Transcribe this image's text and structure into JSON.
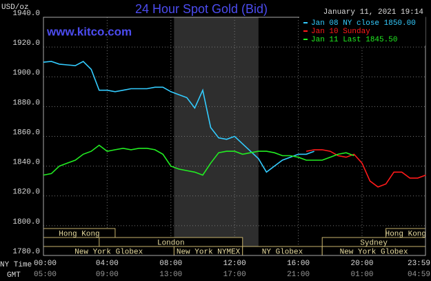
{
  "chart_data": {
    "type": "line",
    "title": "24 Hour Spot Gold (Bid)",
    "y_label": "USD/oz",
    "timestamp": "January 11, 2021 19:14",
    "watermark": "www.kitco.com",
    "x_label": "NY Time",
    "x2_label": "GMT",
    "x": [
      0,
      0.5,
      1,
      1.5,
      2,
      2.5,
      3,
      3.5,
      4,
      4.5,
      5,
      5.5,
      6,
      6.5,
      7,
      7.5,
      8,
      8.5,
      9,
      9.5,
      10,
      10.5,
      11,
      11.5,
      12,
      12.5,
      13,
      13.5,
      14,
      14.5,
      15,
      15.5,
      16,
      16.5,
      17,
      17.5,
      18,
      18.5,
      19,
      19.5,
      20,
      20.5,
      21,
      21.5,
      22,
      22.5,
      23,
      23.5,
      24
    ],
    "series": [
      {
        "name": "Jan 08 NY close 1850.00",
        "color": "#33ccff",
        "values": [
          1909.8,
          1910.3,
          1908.5,
          1908,
          1907.5,
          1910.3,
          1905,
          1891,
          1891,
          1890,
          1891,
          1892,
          1892,
          1892,
          1893,
          1893,
          1890,
          1888,
          1886,
          1879,
          1891,
          1866,
          1859,
          1858,
          1860,
          1855,
          1850,
          1845,
          1836,
          1840,
          1844,
          1846,
          1848,
          1848,
          1850,
          null,
          null,
          null,
          null,
          null,
          null,
          null,
          null,
          null,
          null,
          null,
          null,
          null,
          null
        ]
      },
      {
        "name": "Jan 10 Sunday",
        "color": "#ff1a1a",
        "values": [
          null,
          null,
          null,
          null,
          null,
          null,
          null,
          null,
          null,
          null,
          null,
          null,
          null,
          null,
          null,
          null,
          null,
          null,
          null,
          null,
          null,
          null,
          null,
          null,
          null,
          null,
          null,
          null,
          null,
          null,
          null,
          null,
          null,
          1850,
          1851,
          1851,
          1850,
          1847,
          1846,
          1848,
          1842,
          1830,
          1826,
          1828,
          1836,
          1836,
          1832,
          1832,
          1834
        ]
      },
      {
        "name": "Jan 11 Last 1845.50",
        "color": "#22ee22",
        "values": [
          1834,
          1835,
          1840,
          1842,
          1844,
          1848,
          1850,
          1854,
          1850,
          1851,
          1852,
          1851,
          1852,
          1852,
          1851,
          1848,
          1840,
          1838,
          1837,
          1836,
          1834,
          1842,
          1849,
          1850,
          1850,
          1848,
          1849,
          1850,
          1850,
          1849,
          1847,
          1847,
          1846,
          1844,
          1844,
          1844,
          1846,
          1848,
          1849,
          1847,
          null,
          null,
          null,
          null,
          null,
          null,
          null,
          null,
          null
        ]
      }
    ],
    "xlim": [
      0,
      23.9833
    ],
    "xticks": [
      {
        "value": 0,
        "label": "00:00"
      },
      {
        "value": 4,
        "label": "04:00"
      },
      {
        "value": 8,
        "label": "08:00"
      },
      {
        "value": 12,
        "label": "12:00"
      },
      {
        "value": 16,
        "label": "16:00"
      },
      {
        "value": 20,
        "label": "20:00"
      },
      {
        "value": 23.9833,
        "label": "23:59"
      }
    ],
    "x2ticks": [
      {
        "value": 0,
        "label": "05:00"
      },
      {
        "value": 4,
        "label": "09:00"
      },
      {
        "value": 8,
        "label": "13:00"
      },
      {
        "value": 12,
        "label": "17:00"
      },
      {
        "value": 16,
        "label": "21:00"
      },
      {
        "value": 20,
        "label": "01:00"
      },
      {
        "value": 23.9833,
        "label": "04:59"
      }
    ],
    "ylim": [
      1780,
      1940
    ],
    "yticks": [
      {
        "value": 1780,
        "label": "1780.0"
      },
      {
        "value": 1800,
        "label": "1800.0"
      },
      {
        "value": 1820,
        "label": "1820.0"
      },
      {
        "value": 1840,
        "label": "1840.0"
      },
      {
        "value": 1860,
        "label": "1860.0"
      },
      {
        "value": 1880,
        "label": "1880.0"
      },
      {
        "value": 1900,
        "label": "1900.0"
      },
      {
        "value": 1920,
        "label": "1920.0"
      },
      {
        "value": 1940,
        "label": "1940.0"
      }
    ],
    "grid": true,
    "shade": [
      8.2,
      13.5
    ],
    "sessions": [
      {
        "label": "Hong Kong",
        "row": 0,
        "start": 0,
        "end": 4.5
      },
      {
        "label": "Hong Kong",
        "row": 0,
        "start": 21.5,
        "end": 23.9833
      },
      {
        "label": "London",
        "row": 1,
        "start": 3.5,
        "end": 12.5
      },
      {
        "label": "Sydney",
        "row": 1,
        "start": 17.5,
        "end": 23.9833
      },
      {
        "label": "New York Globex",
        "row": 2,
        "start": 0,
        "end": 8.2
      },
      {
        "label": "New York NYMEX",
        "row": 2,
        "start": 8.2,
        "end": 12.5
      },
      {
        "label": "NY Globex",
        "row": 2,
        "start": 12.5,
        "end": 17.5
      },
      {
        "label": "New York Globex",
        "row": 2,
        "start": 17.5,
        "end": 23.9833
      }
    ]
  }
}
